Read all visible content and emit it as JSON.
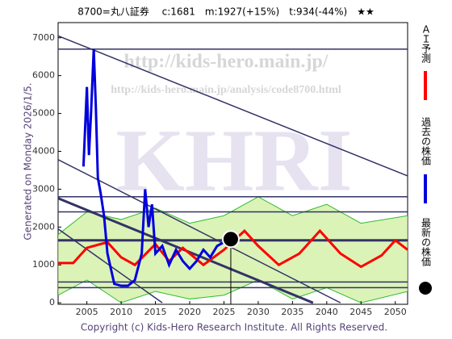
{
  "chart_data": {
    "type": "line",
    "title": "8700=丸八証券　 c:1681　m:1927(+15%)　t:934(-44%)　★★",
    "side_label": "Generated on Monday 2026/1/5.",
    "footer": "Copyright (c) Kids-Hero Research Institute. All Rights Reserved.",
    "watermarks": [
      "http://kids-hero.main.jp/",
      "http://kids-hero.main.jp/analysis/code8700.html",
      "KHRI"
    ],
    "xlim": [
      2000.8,
      2051.8
    ],
    "xticks": [
      2005,
      2010,
      2015,
      2020,
      2025,
      2030,
      2035,
      2040,
      2045,
      2050
    ],
    "ylim": [
      -40,
      7400
    ],
    "yticks": [
      0,
      1000,
      2000,
      3000,
      4000,
      5000,
      6000,
      7000
    ],
    "series": [
      {
        "name": "ＡＩ予測",
        "color": "#ff0000",
        "x": [
          2000.8,
          2003,
          2005,
          2008,
          2010,
          2012,
          2015,
          2017,
          2019,
          2022,
          2025,
          2028,
          2030,
          2033,
          2036,
          2039,
          2042,
          2045,
          2048,
          2050,
          2051.8
        ],
        "values": [
          1050,
          1050,
          1450,
          1600,
          1200,
          1000,
          1550,
          1100,
          1450,
          1000,
          1400,
          1900,
          1500,
          1000,
          1300,
          1900,
          1300,
          950,
          1250,
          1650,
          1400
        ]
      },
      {
        "name": "過去の株価",
        "color": "#0000dd",
        "x": [
          2004.5,
          2005,
          2005.3,
          2005.6,
          2006,
          2006.3,
          2006.6,
          2007,
          2007.5,
          2008,
          2008.5,
          2009,
          2010,
          2011,
          2012,
          2013,
          2013.5,
          2014,
          2014.5,
          2015,
          2016,
          2017,
          2018,
          2019,
          2020,
          2021,
          2022,
          2023,
          2024,
          2025,
          2025.5
        ],
        "values": [
          3600,
          5700,
          3900,
          5000,
          6700,
          5200,
          3300,
          2900,
          2300,
          1300,
          900,
          500,
          450,
          450,
          600,
          1300,
          3000,
          2000,
          2600,
          1300,
          1500,
          1000,
          1400,
          1100,
          900,
          1100,
          1400,
          1200,
          1500,
          1600,
          1700
        ]
      }
    ],
    "band": {
      "color": "#33bb33",
      "x": [
        2000.8,
        2005,
        2010,
        2015,
        2020,
        2025,
        2030,
        2035,
        2040,
        2045,
        2051.8
      ],
      "upper": [
        1800,
        2400,
        2200,
        2500,
        2100,
        2300,
        2800,
        2300,
        2600,
        2100,
        2300
      ],
      "lower": [
        200,
        600,
        0,
        300,
        100,
        200,
        600,
        100,
        400,
        0,
        300
      ]
    },
    "hlines": [
      6700,
      2800,
      2400,
      1650,
      550,
      400
    ],
    "trendlines": [
      {
        "x": [
          2000.8,
          2051.8
        ],
        "values": [
          7050,
          3350
        ]
      },
      {
        "x": [
          2000.8,
          2042
        ],
        "values": [
          3780,
          0
        ]
      },
      {
        "x": [
          2000.8,
          2038
        ],
        "values": [
          2760,
          0
        ]
      },
      {
        "x": [
          2000.8,
          2016
        ],
        "values": [
          1950,
          0
        ]
      }
    ],
    "latest": {
      "name": "最新の株価",
      "x": 2026,
      "value": 1681
    }
  }
}
